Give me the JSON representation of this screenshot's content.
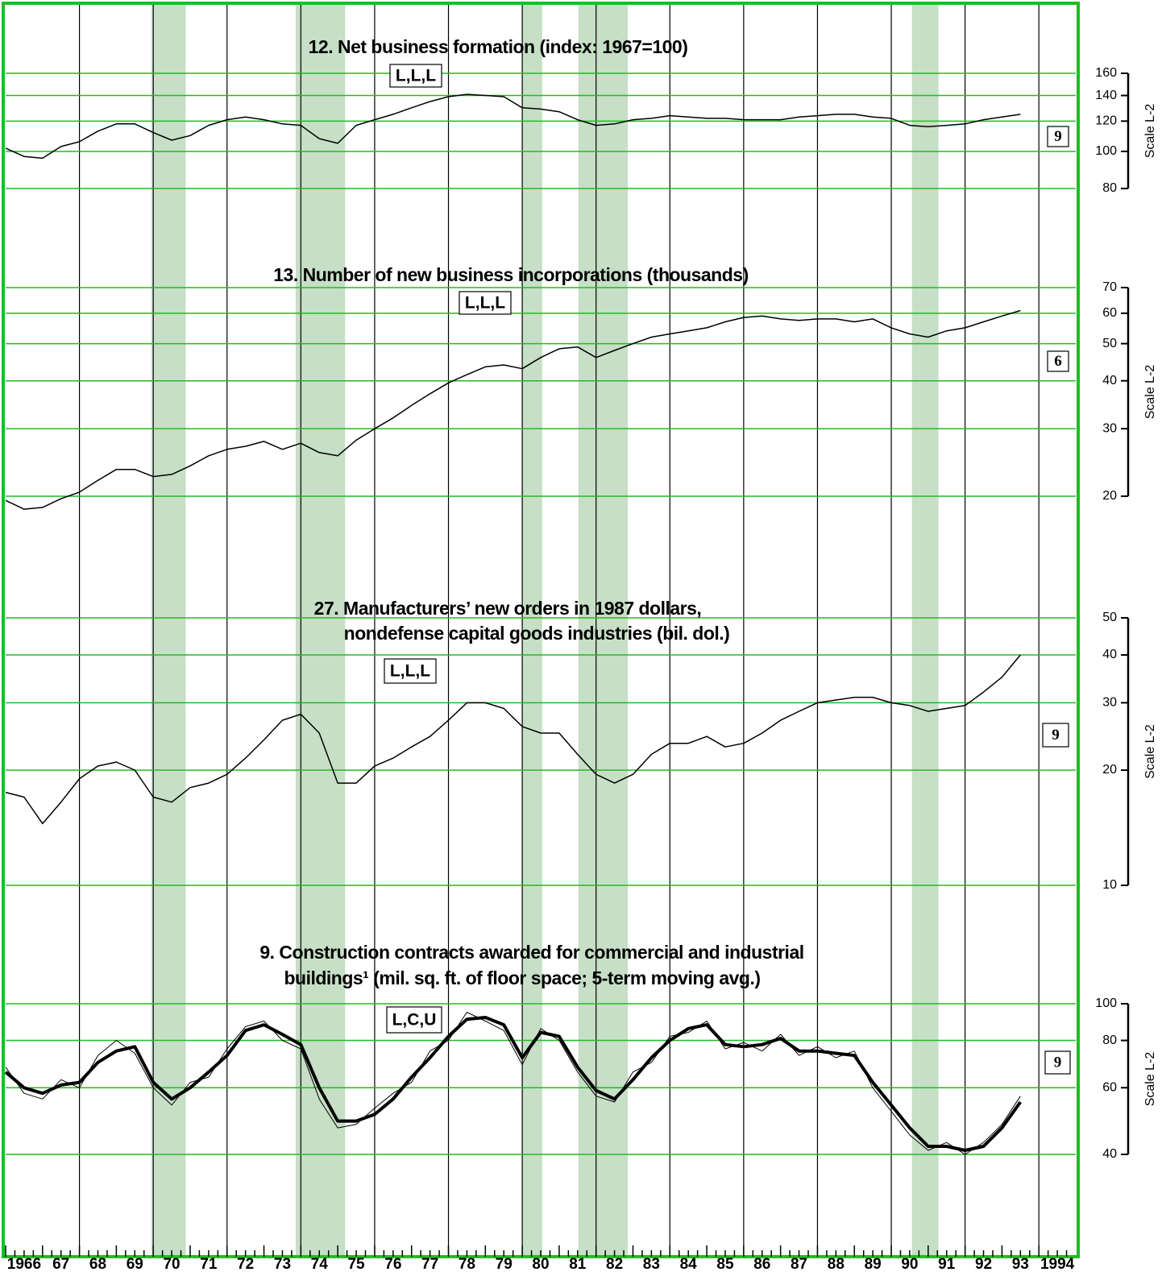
{
  "x_axis": {
    "xlim": [
      1966,
      1995
    ],
    "xticks": [
      {
        "value": 1966.5,
        "label": "1966"
      },
      {
        "value": 1967.5,
        "label": "67"
      },
      {
        "value": 1968.5,
        "label": "68"
      },
      {
        "value": 1969.5,
        "label": "69"
      },
      {
        "value": 1970.5,
        "label": "70"
      },
      {
        "value": 1971.5,
        "label": "71"
      },
      {
        "value": 1972.5,
        "label": "72"
      },
      {
        "value": 1973.5,
        "label": "73"
      },
      {
        "value": 1974.5,
        "label": "74"
      },
      {
        "value": 1975.5,
        "label": "75"
      },
      {
        "value": 1976.5,
        "label": "76"
      },
      {
        "value": 1977.5,
        "label": "77"
      },
      {
        "value": 1978.5,
        "label": "78"
      },
      {
        "value": 1979.5,
        "label": "79"
      },
      {
        "value": 1980.5,
        "label": "80"
      },
      {
        "value": 1981.5,
        "label": "81"
      },
      {
        "value": 1982.5,
        "label": "82"
      },
      {
        "value": 1983.5,
        "label": "83"
      },
      {
        "value": 1984.5,
        "label": "84"
      },
      {
        "value": 1985.5,
        "label": "85"
      },
      {
        "value": 1986.5,
        "label": "86"
      },
      {
        "value": 1987.5,
        "label": "87"
      },
      {
        "value": 1988.5,
        "label": "88"
      },
      {
        "value": 1989.5,
        "label": "89"
      },
      {
        "value": 1990.5,
        "label": "90"
      },
      {
        "value": 1991.5,
        "label": "91"
      },
      {
        "value": 1992.5,
        "label": "92"
      },
      {
        "value": 1993.5,
        "label": "93"
      },
      {
        "value": 1994.5,
        "label": "1994"
      }
    ]
  },
  "shaded_periods": [
    [
      1969.95,
      1970.88
    ],
    [
      1973.86,
      1975.2
    ],
    [
      1980.0,
      1980.54
    ],
    [
      1981.52,
      1982.86
    ],
    [
      1990.56,
      1991.28
    ]
  ],
  "chart_data": [
    {
      "type": "line",
      "title": [
        "12. Net business formation (index: 1967=100)"
      ],
      "code": "L,L,L",
      "lead": 9,
      "scale_label": "Scale L-2",
      "log_scale": true,
      "ylim": [
        80,
        160
      ],
      "yticks": [
        80,
        100,
        120,
        140,
        160
      ],
      "grid": true,
      "grid_color": "#22bb22",
      "x": [
        1966,
        1966.5,
        1967,
        1967.5,
        1968,
        1968.5,
        1969,
        1969.5,
        1970,
        1970.5,
        1971,
        1971.5,
        1972,
        1972.5,
        1973,
        1973.5,
        1974,
        1974.5,
        1975,
        1975.5,
        1976,
        1976.5,
        1977,
        1977.5,
        1978,
        1978.5,
        1979,
        1979.5,
        1980,
        1980.5,
        1981,
        1981.5,
        1982,
        1982.5,
        1983,
        1983.5,
        1984,
        1984.5,
        1985,
        1985.5,
        1986,
        1986.5,
        1987,
        1987.5,
        1988,
        1988.5,
        1989,
        1989.5,
        1990,
        1990.5,
        1991,
        1991.5,
        1992,
        1992.5,
        1993,
        1993.5
      ],
      "series": [
        {
          "color": "#000000",
          "values": [
            102,
            97,
            96,
            103,
            106,
            113,
            118,
            118,
            112,
            107,
            110,
            117,
            121,
            123,
            121,
            118,
            117,
            108,
            105,
            117,
            121,
            125,
            130,
            135,
            139,
            141,
            140,
            139,
            130,
            129,
            127,
            121,
            117,
            118,
            121,
            122,
            124,
            123,
            122,
            122,
            121,
            121,
            121,
            123,
            124,
            125,
            125,
            123,
            122,
            117,
            116,
            117,
            118,
            121,
            123,
            125
          ]
        }
      ]
    },
    {
      "type": "line",
      "title": [
        "13. Number of new business incorporations (thousands)"
      ],
      "code": "L,L,L",
      "lead": 6,
      "scale_label": "Scale L-2",
      "log_scale": true,
      "ylim": [
        20,
        70
      ],
      "yticks": [
        20,
        30,
        40,
        50,
        60,
        70
      ],
      "grid": true,
      "grid_color": "#22bb22",
      "x": [
        1966,
        1966.5,
        1967,
        1967.5,
        1968,
        1968.5,
        1969,
        1969.5,
        1970,
        1970.5,
        1971,
        1971.5,
        1972,
        1972.5,
        1973,
        1973.5,
        1974,
        1974.5,
        1975,
        1975.5,
        1976,
        1976.5,
        1977,
        1977.5,
        1978,
        1978.5,
        1979,
        1979.5,
        1980,
        1980.5,
        1981,
        1981.5,
        1982,
        1982.5,
        1983,
        1983.5,
        1984,
        1984.5,
        1985,
        1985.5,
        1986,
        1986.5,
        1987,
        1987.5,
        1988,
        1988.5,
        1989,
        1989.5,
        1990,
        1990.5,
        1991,
        1991.5,
        1992,
        1992.5,
        1993,
        1993.5
      ],
      "series": [
        {
          "color": "#000000",
          "values": [
            19.5,
            18.5,
            18.7,
            19.7,
            20.5,
            22,
            23.5,
            23.5,
            22.5,
            22.8,
            24,
            25.5,
            26.5,
            27,
            27.8,
            26.5,
            27.5,
            26,
            25.5,
            28,
            30,
            32,
            34.5,
            37,
            39.5,
            41.5,
            43.5,
            44,
            43,
            46,
            48.5,
            49,
            46,
            48,
            50,
            52,
            53,
            54,
            55,
            57,
            58.5,
            59,
            58,
            57.5,
            58,
            58,
            57,
            58,
            55,
            53,
            52,
            54,
            55,
            57,
            59,
            61
          ]
        }
      ]
    },
    {
      "type": "line",
      "title": [
        "27. Manufacturers’ new orders in 1987 dollars,",
        "nondefense capital goods industries (bil. dol.)"
      ],
      "code": "L,L,L",
      "lead": 9,
      "scale_label": "Scale L-2",
      "log_scale": true,
      "ylim": [
        10,
        50
      ],
      "yticks": [
        10,
        20,
        30,
        40,
        50
      ],
      "grid": true,
      "grid_color": "#22bb22",
      "x": [
        1966,
        1966.5,
        1967,
        1967.5,
        1968,
        1968.5,
        1969,
        1969.5,
        1970,
        1970.5,
        1971,
        1971.5,
        1972,
        1972.5,
        1973,
        1973.5,
        1974,
        1974.5,
        1975,
        1975.5,
        1976,
        1976.5,
        1977,
        1977.5,
        1978,
        1978.5,
        1979,
        1979.5,
        1980,
        1980.5,
        1981,
        1981.5,
        1982,
        1982.5,
        1983,
        1983.5,
        1984,
        1984.5,
        1985,
        1985.5,
        1986,
        1986.5,
        1987,
        1987.5,
        1988,
        1988.5,
        1989,
        1989.5,
        1990,
        1990.5,
        1991,
        1991.5,
        1992,
        1992.5,
        1993,
        1993.5
      ],
      "series": [
        {
          "color": "#000000",
          "values": [
            17.5,
            17,
            14.5,
            16.5,
            19,
            20.5,
            21,
            20,
            17,
            16.5,
            18,
            18.5,
            19.5,
            21.5,
            24,
            27,
            28,
            25,
            18.5,
            18.5,
            20.5,
            21.5,
            23,
            24.5,
            27,
            30,
            30,
            29,
            26,
            25,
            25,
            22,
            19.5,
            18.5,
            19.5,
            22,
            23.5,
            23.5,
            24.5,
            23,
            23.5,
            25,
            27,
            28.5,
            30,
            30.5,
            31,
            31,
            30,
            29.5,
            28.5,
            29,
            29.5,
            32,
            35,
            40
          ]
        }
      ]
    },
    {
      "type": "line",
      "title": [
        "9. Construction contracts awarded for commercial and industrial",
        "buildings¹ (mil. sq. ft. of floor space; 5-term moving avg.)"
      ],
      "code": "L,C,U",
      "lead": 9,
      "scale_label": "Scale L-2",
      "log_scale": true,
      "ylim": [
        40,
        100
      ],
      "yticks": [
        40,
        60,
        80,
        100
      ],
      "grid": true,
      "grid_color": "#22bb22",
      "x": [
        1966,
        1966.5,
        1967,
        1967.5,
        1968,
        1968.5,
        1969,
        1969.5,
        1970,
        1970.5,
        1971,
        1971.5,
        1972,
        1972.5,
        1973,
        1973.5,
        1974,
        1974.5,
        1975,
        1975.5,
        1976,
        1976.5,
        1977,
        1977.5,
        1978,
        1978.5,
        1979,
        1979.5,
        1980,
        1980.5,
        1981,
        1981.5,
        1982,
        1982.5,
        1983,
        1983.5,
        1984,
        1984.5,
        1985,
        1985.5,
        1986,
        1986.5,
        1987,
        1987.5,
        1988,
        1988.5,
        1989,
        1989.5,
        1990,
        1990.5,
        1991,
        1991.5,
        1992,
        1992.5,
        1993,
        1993.5
      ],
      "series": [
        {
          "color": "#000000",
          "width": 1,
          "values": [
            68,
            58,
            56,
            63,
            60,
            73,
            80,
            74,
            60,
            54,
            62,
            64,
            76,
            87,
            90,
            80,
            76,
            56,
            47,
            48,
            53,
            58,
            62,
            75,
            80,
            95,
            90,
            85,
            69,
            86,
            80,
            66,
            57,
            55,
            66,
            70,
            82,
            84,
            90,
            76,
            79,
            75,
            83,
            73,
            77,
            72,
            75,
            60,
            52,
            45,
            41,
            43,
            40,
            43,
            48,
            57
          ]
        },
        {
          "color": "#000000",
          "width": 4,
          "values": [
            66,
            60,
            58,
            61,
            62,
            70,
            75,
            77,
            62,
            56,
            60,
            66,
            73,
            85,
            88,
            83,
            78,
            60,
            49,
            49,
            51,
            56,
            64,
            72,
            82,
            91,
            92,
            88,
            72,
            84,
            82,
            68,
            59,
            56,
            63,
            72,
            80,
            86,
            88,
            78,
            77,
            78,
            81,
            75,
            75,
            74,
            73,
            62,
            54,
            47,
            42,
            42,
            41,
            42,
            47,
            55
          ]
        }
      ]
    }
  ]
}
